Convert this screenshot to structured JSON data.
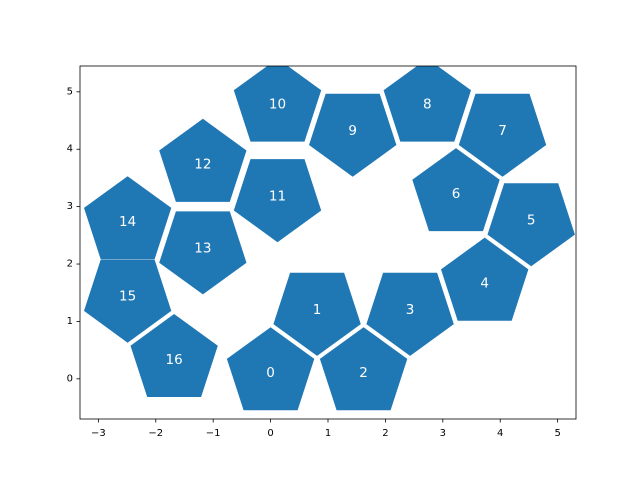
{
  "chart_data": {
    "type": "scatter",
    "title": "",
    "xlabel": "",
    "ylabel": "",
    "xlim": [
      -3.32,
      5.32
    ],
    "ylim": [
      -0.7,
      5.45
    ],
    "x_ticks": [
      -3,
      -2,
      -1,
      0,
      1,
      2,
      3,
      4,
      5
    ],
    "y_ticks": [
      0,
      1,
      2,
      3,
      4,
      5
    ],
    "grid": false,
    "fill_color": "#1f77b4",
    "label_color": "#ffffff",
    "marker_shape": "pentagon",
    "points": [
      {
        "label": "0",
        "x": 0.0,
        "y": 0.1,
        "rot": 0
      },
      {
        "label": "1",
        "x": 0.81,
        "y": 1.2,
        "rot": 180
      },
      {
        "label": "2",
        "x": 1.62,
        "y": 0.1,
        "rot": 0
      },
      {
        "label": "3",
        "x": 2.43,
        "y": 1.2,
        "rot": 180
      },
      {
        "label": "4",
        "x": 3.73,
        "y": 1.66,
        "rot": 0
      },
      {
        "label": "5",
        "x": 4.54,
        "y": 2.76,
        "rot": 180
      },
      {
        "label": "6",
        "x": 3.23,
        "y": 3.22,
        "rot": 0
      },
      {
        "label": "7",
        "x": 4.04,
        "y": 4.32,
        "rot": 180
      },
      {
        "label": "8",
        "x": 2.73,
        "y": 4.78,
        "rot": 0
      },
      {
        "label": "9",
        "x": 1.43,
        "y": 4.32,
        "rot": 180
      },
      {
        "label": "10",
        "x": 0.12,
        "y": 4.78,
        "rot": 0
      },
      {
        "label": "11",
        "x": 0.12,
        "y": 3.18,
        "rot": 180
      },
      {
        "label": "12",
        "x": -1.18,
        "y": 3.73,
        "rot": 0
      },
      {
        "label": "13",
        "x": -1.18,
        "y": 2.27,
        "rot": 180
      },
      {
        "label": "14",
        "x": -2.49,
        "y": 2.73,
        "rot": 0
      },
      {
        "label": "15",
        "x": -2.49,
        "y": 1.43,
        "rot": 180
      },
      {
        "label": "16",
        "x": -1.68,
        "y": 0.33,
        "rot": 0
      }
    ]
  }
}
